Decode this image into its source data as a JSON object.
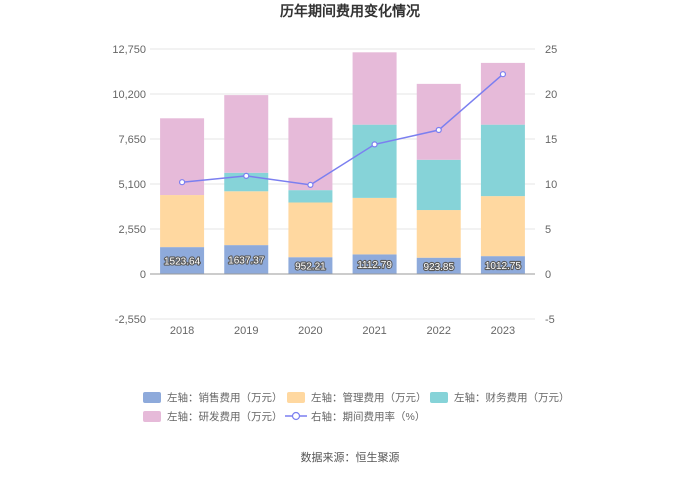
{
  "title": "历年期间费用变化情况",
  "source": "数据来源：恒生聚源",
  "colors": {
    "sales": "#8eaadb",
    "management": "#ffd8a0",
    "finance": "#86d3d8",
    "rd": "#e6bad9",
    "line": "#7b7ff0",
    "grid": "#e6e6e6",
    "axis_text": "#666666"
  },
  "chart_data": {
    "type": "bar",
    "stacked": true,
    "categories": [
      "2018",
      "2019",
      "2020",
      "2021",
      "2022",
      "2023"
    ],
    "series": [
      {
        "name": "左轴：销售费用（万元）",
        "axis": "left",
        "values": [
          1523.64,
          1637.37,
          952.21,
          1112.79,
          923.85,
          1012.75
        ]
      },
      {
        "name": "左轴：管理费用（万元）",
        "axis": "left",
        "values": [
          2950,
          3050,
          3100,
          3200,
          2700,
          3400
        ]
      },
      {
        "name": "左轴：财务费用（万元）",
        "axis": "left",
        "values": [
          0,
          1050,
          700,
          4150,
          2850,
          4050
        ]
      },
      {
        "name": "左轴：研发费用（万元）",
        "axis": "left",
        "values": [
          4350,
          4400,
          4100,
          4100,
          4300,
          3500
        ]
      },
      {
        "name": "右轴：期间费用率（%）",
        "axis": "right",
        "type": "line",
        "values": [
          10.2,
          10.9,
          9.9,
          14.4,
          16.0,
          22.2
        ]
      }
    ],
    "data_labels": [
      "1523.64",
      "1637.37",
      "952.21",
      "1112.79",
      "923.85",
      "1012.75"
    ],
    "y_left": {
      "min": -2550,
      "max": 12750,
      "ticks": [
        "-2,550",
        "0",
        "2,550",
        "5,100",
        "7,650",
        "10,200",
        "12,750"
      ]
    },
    "y_right": {
      "min": -5,
      "max": 25,
      "ticks": [
        "-5",
        "0",
        "5",
        "10",
        "15",
        "20",
        "25"
      ]
    },
    "grid": true,
    "legend_position": "bottom"
  }
}
